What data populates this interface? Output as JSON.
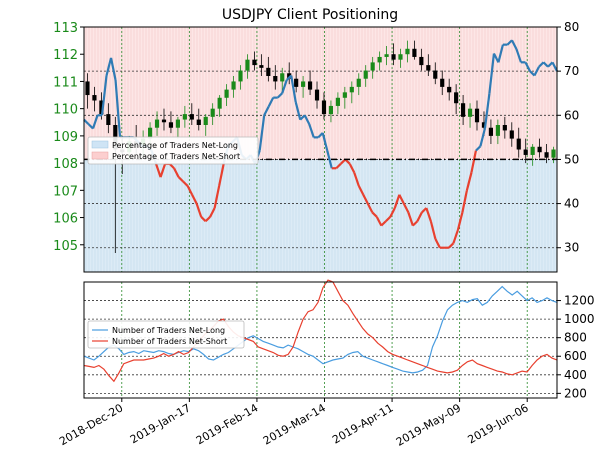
{
  "chart_data": [
    {
      "type": "line",
      "title": "USDJPY Client Positioning",
      "left_axis_ticks": [
        "105",
        "106",
        "107",
        "108",
        "109",
        "110",
        "111",
        "112",
        "113"
      ],
      "right_axis_ticks": [
        "30",
        "40",
        "50",
        "60",
        "70",
        "80"
      ],
      "x_tick_labels": [
        "2018-Dec-20",
        "2019-Jan-17",
        "2019-Feb-14",
        "2019-Mar-14",
        "2019-Apr-11",
        "2019-May-09",
        "2019-Jun-06"
      ],
      "ylim_left": [
        104.0,
        113.0
      ],
      "ylim_right": [
        24.5,
        80
      ],
      "reference_line_right": 50,
      "legend": [
        "Percentage of Traders Net-Long",
        "Percentage of Traders Net-Short"
      ],
      "legend_position": "left",
      "colors": {
        "net_long": "#2f7bb5",
        "net_short": "#e8402f",
        "candle_up": "#1a8a1a",
        "candle_down": "#000000",
        "left_axis": "#1a8a1a"
      },
      "series_pct_long": [
        59,
        58,
        57,
        60,
        60,
        69,
        73,
        68,
        55,
        55,
        55,
        55,
        54,
        53,
        53,
        52,
        49,
        46,
        49,
        49,
        48,
        46,
        45,
        44,
        42,
        40,
        37,
        36,
        37,
        39,
        44,
        49,
        53,
        54,
        55,
        51,
        50,
        51,
        49,
        52,
        60,
        62,
        64,
        64,
        65,
        68,
        69,
        63,
        59,
        60,
        58,
        55,
        55,
        56,
        52,
        48,
        48,
        49,
        50,
        49,
        47,
        44,
        42,
        40,
        38,
        37,
        35,
        36,
        37,
        39,
        42,
        40,
        38,
        35,
        36,
        38,
        39,
        36,
        32,
        30,
        30,
        30,
        31,
        34,
        38,
        43,
        47,
        52,
        53,
        57,
        65,
        74,
        72,
        76,
        76,
        77,
        75,
        72,
        72,
        70,
        69,
        71,
        72,
        71,
        72,
        70
      ],
      "ohlc": [
        [
          111.0,
          111.3,
          110.0,
          110.5
        ],
        [
          110.5,
          110.8,
          109.9,
          110.3
        ],
        [
          110.3,
          110.6,
          109.6,
          109.8
        ],
        [
          109.8,
          110.2,
          109.1,
          109.4
        ],
        [
          109.4,
          109.7,
          104.7,
          108.5
        ],
        [
          108.5,
          109.0,
          107.6,
          108.4
        ],
        [
          108.4,
          109.0,
          108.1,
          108.8
        ],
        [
          108.8,
          109.4,
          108.3,
          108.6
        ],
        [
          108.6,
          109.2,
          108.2,
          108.9
        ],
        [
          108.9,
          109.5,
          108.6,
          109.3
        ],
        [
          109.3,
          109.9,
          109.0,
          109.6
        ],
        [
          109.6,
          110.0,
          109.2,
          109.5
        ],
        [
          109.5,
          109.9,
          109.1,
          109.3
        ],
        [
          109.3,
          109.7,
          108.9,
          109.6
        ],
        [
          109.6,
          110.1,
          109.3,
          109.8
        ],
        [
          109.8,
          110.2,
          109.4,
          109.6
        ],
        [
          109.6,
          110.0,
          109.2,
          109.4
        ],
        [
          109.4,
          109.8,
          109.0,
          109.7
        ],
        [
          109.7,
          110.2,
          109.4,
          110.0
        ],
        [
          110.0,
          110.5,
          109.7,
          110.4
        ],
        [
          110.4,
          110.9,
          110.1,
          110.7
        ],
        [
          110.7,
          111.2,
          110.4,
          111.0
        ],
        [
          111.0,
          111.6,
          110.7,
          111.4
        ],
        [
          111.4,
          112.0,
          111.1,
          111.8
        ],
        [
          111.8,
          112.1,
          111.4,
          111.6
        ],
        [
          111.6,
          112.0,
          111.2,
          111.5
        ],
        [
          111.5,
          111.9,
          111.0,
          111.2
        ],
        [
          111.2,
          111.6,
          110.7,
          111.0
        ],
        [
          111.0,
          111.5,
          110.6,
          111.3
        ],
        [
          111.3,
          111.7,
          110.9,
          111.1
        ],
        [
          111.1,
          111.4,
          110.6,
          110.8
        ],
        [
          110.8,
          111.2,
          110.4,
          111.0
        ],
        [
          111.0,
          111.4,
          110.5,
          110.7
        ],
        [
          110.7,
          111.0,
          110.0,
          110.3
        ],
        [
          110.3,
          110.6,
          109.6,
          109.8
        ],
        [
          109.8,
          110.3,
          109.5,
          110.1
        ],
        [
          110.1,
          110.6,
          109.8,
          110.4
        ],
        [
          110.4,
          110.8,
          110.0,
          110.6
        ],
        [
          110.6,
          111.0,
          110.2,
          110.8
        ],
        [
          110.8,
          111.3,
          110.5,
          111.1
        ],
        [
          111.1,
          111.6,
          110.8,
          111.4
        ],
        [
          111.4,
          111.9,
          111.1,
          111.7
        ],
        [
          111.7,
          112.1,
          111.4,
          111.9
        ],
        [
          111.9,
          112.3,
          111.6,
          112.0
        ],
        [
          112.0,
          112.4,
          111.6,
          111.8
        ],
        [
          111.8,
          112.2,
          111.5,
          112.0
        ],
        [
          112.0,
          112.5,
          111.7,
          112.2
        ],
        [
          112.2,
          112.5,
          111.8,
          111.9
        ],
        [
          111.9,
          112.2,
          111.4,
          111.6
        ],
        [
          111.6,
          112.0,
          111.2,
          111.4
        ],
        [
          111.4,
          111.7,
          110.9,
          111.1
        ],
        [
          111.1,
          111.4,
          110.5,
          110.8
        ],
        [
          110.8,
          111.1,
          110.3,
          110.6
        ],
        [
          110.6,
          110.9,
          109.8,
          110.2
        ],
        [
          110.2,
          110.5,
          109.4,
          109.7
        ],
        [
          109.7,
          110.2,
          109.3,
          110.0
        ],
        [
          110.0,
          110.3,
          109.2,
          109.5
        ],
        [
          109.5,
          109.9,
          109.0,
          109.3
        ],
        [
          109.3,
          109.6,
          108.7,
          109.0
        ],
        [
          109.0,
          109.6,
          108.7,
          109.4
        ],
        [
          109.4,
          109.7,
          108.9,
          109.2
        ],
        [
          109.2,
          109.5,
          108.6,
          108.9
        ],
        [
          108.9,
          109.3,
          108.2,
          108.5
        ],
        [
          108.5,
          108.9,
          108.0,
          108.3
        ],
        [
          108.3,
          108.7,
          107.9,
          108.6
        ],
        [
          108.6,
          108.9,
          108.2,
          108.4
        ],
        [
          108.4,
          108.7,
          108.0,
          108.2
        ],
        [
          108.2,
          108.6,
          108.0,
          108.5
        ]
      ]
    },
    {
      "type": "line",
      "right_axis_ticks": [
        "200",
        "400",
        "600",
        "800",
        "1000",
        "1200"
      ],
      "ylim_right": [
        150,
        1400
      ],
      "legend": [
        "Number of Traders Net-Long",
        "Number of Traders Net-Short"
      ],
      "legend_position": "top-left",
      "colors": {
        "net_long": "#4a9de0",
        "net_short": "#e8402f"
      },
      "series": [
        {
          "name": "Number of Traders Net-Long",
          "values": [
            600,
            580,
            560,
            600,
            650,
            700,
            720,
            680,
            620,
            640,
            650,
            630,
            660,
            650,
            640,
            660,
            650,
            630,
            620,
            640,
            660,
            650,
            680,
            660,
            620,
            570,
            560,
            590,
            620,
            640,
            680,
            720,
            760,
            800,
            820,
            790,
            760,
            740,
            720,
            700,
            690,
            720,
            700,
            680,
            650,
            620,
            600,
            560,
            520,
            540,
            560,
            570,
            580,
            620,
            640,
            650,
            600,
            580,
            560,
            540,
            520,
            500,
            480,
            460,
            440,
            430,
            420,
            430,
            450,
            500,
            700,
            820,
            980,
            1100,
            1150,
            1180,
            1200,
            1180,
            1210,
            1220,
            1150,
            1180,
            1250,
            1300,
            1350,
            1300,
            1260,
            1300,
            1250,
            1200,
            1230,
            1180,
            1200,
            1230,
            1200,
            1180
          ]
        },
        {
          "name": "Number of Traders Net-Short",
          "values": [
            500,
            490,
            480,
            500,
            460,
            390,
            330,
            420,
            520,
            540,
            560,
            560,
            560,
            570,
            580,
            600,
            630,
            600,
            620,
            650,
            620,
            640,
            700,
            760,
            820,
            880,
            920,
            980,
            1000,
            920,
            860,
            820,
            800,
            780,
            760,
            700,
            680,
            660,
            640,
            610,
            600,
            620,
            700,
            860,
            1000,
            1080,
            1100,
            1180,
            1340,
            1420,
            1400,
            1300,
            1200,
            1150,
            1060,
            980,
            900,
            840,
            800,
            740,
            700,
            650,
            620,
            600,
            580,
            560,
            540,
            520,
            500,
            480,
            460,
            440,
            430,
            420,
            430,
            450,
            500,
            540,
            560,
            520,
            500,
            480,
            460,
            440,
            430,
            410,
            400,
            420,
            440,
            430,
            500,
            560,
            600,
            620,
            580,
            560
          ]
        }
      ]
    }
  ]
}
